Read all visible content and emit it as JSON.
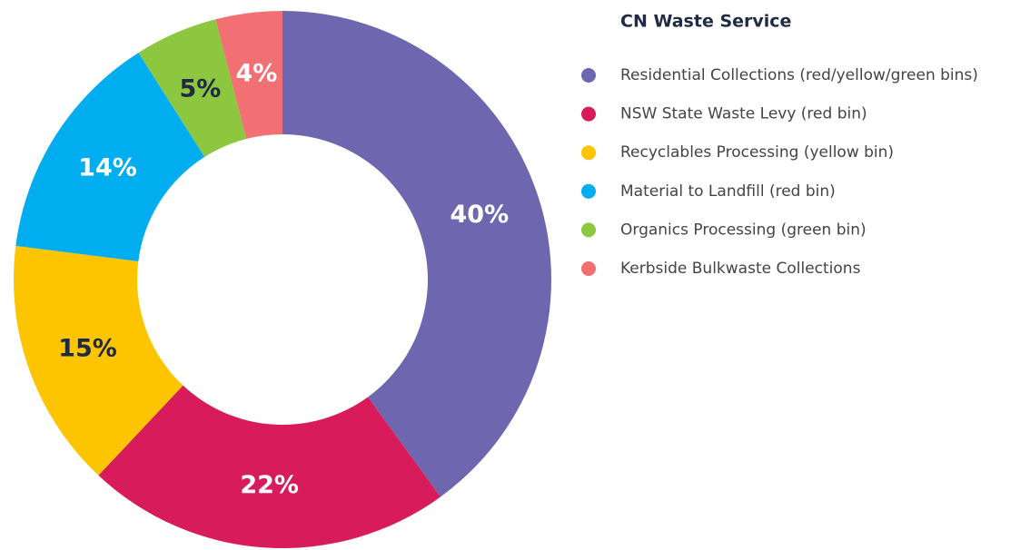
{
  "chart_data": {
    "type": "donut",
    "title": "CN Waste Service",
    "categories": [
      "Residential Collections (red/yellow/green bins)",
      "NSW State Waste Levy (red bin)",
      "Recyclables Processing (yellow bin)",
      "Material to Landfill (red bin)",
      "Organics Processing (green bin)",
      "Kerbside Bulkwaste Collections"
    ],
    "values": [
      40,
      22,
      15,
      14,
      5,
      4
    ],
    "value_labels": [
      "40%",
      "22%",
      "15%",
      "14%",
      "5%",
      "4%"
    ],
    "colors": [
      "#6e67b0",
      "#d81b5a",
      "#fcc500",
      "#00aeef",
      "#8dc63f",
      "#f27074"
    ],
    "label_colors": [
      "#ffffff",
      "#ffffff",
      "#1f2a44",
      "#ffffff",
      "#1f2a44",
      "#ffffff"
    ],
    "legend": "right"
  }
}
